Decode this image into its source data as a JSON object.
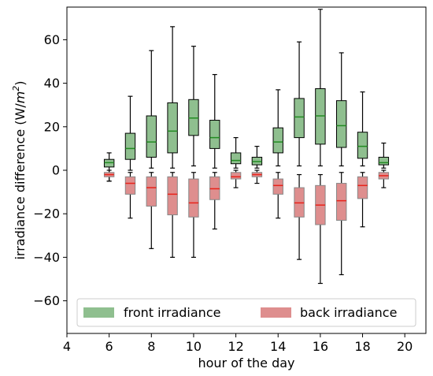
{
  "chart_data": {
    "type": "boxplot",
    "xlabel": "hour of the day",
    "ylabel_main": "irradiance difference (W/",
    "ylabel_unit_base": "m",
    "ylabel_unit_exp": "2",
    "ylabel_close": ")",
    "xlim": [
      4,
      21
    ],
    "ylim": [
      -75,
      75
    ],
    "xticks": [
      "4",
      "6",
      "8",
      "10",
      "12",
      "14",
      "16",
      "18",
      "20"
    ],
    "yticks": [
      "60",
      "40",
      "20",
      "0",
      "−20",
      "−40",
      "−60"
    ],
    "legend": {
      "position": "lower center"
    },
    "series": [
      {
        "name": "front irradiance",
        "color": "#8fbf8f",
        "median_color": "#228b22",
        "boxes": [
          {
            "x": 6,
            "min": -5,
            "q1": 1.5,
            "med": 3.5,
            "q3": 5,
            "max": 8
          },
          {
            "x": 7,
            "min": 0,
            "q1": 5,
            "med": 10,
            "q3": 17,
            "max": 34
          },
          {
            "x": 8,
            "min": 1,
            "q1": 6,
            "med": 13,
            "q3": 25,
            "max": 55
          },
          {
            "x": 9,
            "min": 1,
            "q1": 8,
            "med": 18,
            "q3": 31,
            "max": 66
          },
          {
            "x": 10,
            "min": 2,
            "q1": 16,
            "med": 24,
            "q3": 32.5,
            "max": 57
          },
          {
            "x": 11,
            "min": 1,
            "q1": 10,
            "med": 15,
            "q3": 23,
            "max": 44
          },
          {
            "x": 12,
            "min": 1,
            "q1": 3,
            "med": 4.5,
            "q3": 8,
            "max": 15
          },
          {
            "x": 13,
            "min": 1,
            "q1": 2.5,
            "med": 4,
            "q3": 6,
            "max": 11
          },
          {
            "x": 14,
            "min": 2,
            "q1": 8,
            "med": 13,
            "q3": 19.5,
            "max": 37
          },
          {
            "x": 15,
            "min": 2,
            "q1": 15,
            "med": 24.5,
            "q3": 33,
            "max": 59
          },
          {
            "x": 16,
            "min": 2,
            "q1": 12,
            "med": 25,
            "q3": 37.5,
            "max": 74
          },
          {
            "x": 17,
            "min": 2,
            "q1": 10.5,
            "med": 20.5,
            "q3": 32,
            "max": 54
          },
          {
            "x": 18,
            "min": 2,
            "q1": 5.5,
            "med": 11,
            "q3": 17.5,
            "max": 36
          },
          {
            "x": 19,
            "min": 1,
            "q1": 2.5,
            "med": 3.5,
            "q3": 6,
            "max": 12.5
          }
        ]
      },
      {
        "name": "back irradiance",
        "color": "#de8e8e",
        "median_color": "#e8231a",
        "boxes": [
          {
            "x": 6,
            "min": -5,
            "q1": -3,
            "med": -2,
            "q3": -1,
            "max": 0
          },
          {
            "x": 7,
            "min": -22,
            "q1": -11,
            "med": -6,
            "q3": -3,
            "max": -1
          },
          {
            "x": 8,
            "min": -36,
            "q1": -16.5,
            "med": -8,
            "q3": -3,
            "max": -1
          },
          {
            "x": 9,
            "min": -40,
            "q1": -20.5,
            "med": -11,
            "q3": -3,
            "max": -1
          },
          {
            "x": 10,
            "min": -40,
            "q1": -21.5,
            "med": -15,
            "q3": -4,
            "max": -1
          },
          {
            "x": 11,
            "min": -27,
            "q1": -13.5,
            "med": -8.5,
            "q3": -3,
            "max": -1
          },
          {
            "x": 12,
            "min": -8,
            "q1": -4,
            "med": -3,
            "q3": -1,
            "max": 0
          },
          {
            "x": 13,
            "min": -6,
            "q1": -3,
            "med": -2,
            "q3": -1,
            "max": 0
          },
          {
            "x": 14,
            "min": -22,
            "q1": -11,
            "med": -7,
            "q3": -4,
            "max": -1
          },
          {
            "x": 15,
            "min": -41,
            "q1": -21.5,
            "med": -15,
            "q3": -8,
            "max": -2
          },
          {
            "x": 16,
            "min": -52,
            "q1": -25,
            "med": -16,
            "q3": -7,
            "max": -2
          },
          {
            "x": 17,
            "min": -48,
            "q1": -23,
            "med": -14,
            "q3": -6,
            "max": -1
          },
          {
            "x": 18,
            "min": -26,
            "q1": -13,
            "med": -7,
            "q3": -3,
            "max": -1
          },
          {
            "x": 19,
            "min": -8,
            "q1": -4,
            "med": -2.5,
            "q3": -1,
            "max": 0
          }
        ]
      }
    ]
  }
}
